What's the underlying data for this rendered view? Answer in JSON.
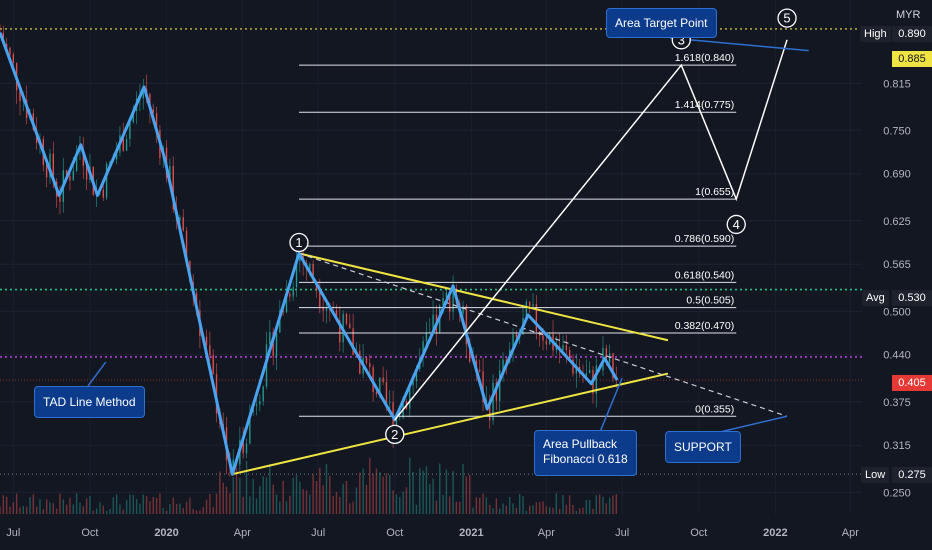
{
  "currency": "MYR",
  "colors": {
    "background": "#131722",
    "wave": "#4aa3f0",
    "trendline": "#f0e442",
    "projection": "#ffffff",
    "high_line": "#f0e442",
    "avg_line": "#26c281",
    "purple_line": "#b23fd9",
    "last_price": "#e53935",
    "callout_bg": "#0d3b8c"
  },
  "price_tags": {
    "high_label": "High",
    "high_value": "0.890",
    "dotted_value": "0.885",
    "avg_label": "Avg",
    "avg_value": "0.530",
    "last_value": "0.405",
    "low_label": "Low",
    "low_value": "0.275"
  },
  "callouts": {
    "target": "Area Target Point",
    "tad": "TAD Line Method",
    "pullback_line1": "Area Pullback",
    "pullback_line2": "Fibonacci 0.618",
    "support": "SUPPORT"
  },
  "chart_data": {
    "type": "line",
    "title": "",
    "y_ticks": [
      "0.815",
      "0.750",
      "0.690",
      "0.625",
      "0.565",
      "0.500",
      "0.440",
      "0.375",
      "0.315",
      "0.250"
    ],
    "x_ticks": [
      "Jul",
      "Oct",
      "2020",
      "Apr",
      "Jul",
      "Oct",
      "2021",
      "Apr",
      "Jul",
      "Oct",
      "2022",
      "Apr"
    ],
    "x_range": [
      "2019-06-15",
      "2022-04-15"
    ],
    "y_range": [
      0.22,
      0.93
    ],
    "wave_path": [
      [
        "2019-06-15",
        0.885
      ],
      [
        "2019-08-25",
        0.66
      ],
      [
        "2019-09-20",
        0.73
      ],
      [
        "2019-10-10",
        0.66
      ],
      [
        "2019-12-05",
        0.81
      ],
      [
        "2019-12-30",
        0.71
      ],
      [
        "2020-03-20",
        0.275
      ],
      [
        "2020-06-08",
        0.58
      ],
      [
        "2020-10-01",
        0.35
      ],
      [
        "2020-12-10",
        0.535
      ],
      [
        "2021-01-20",
        0.365
      ],
      [
        "2021-03-10",
        0.495
      ],
      [
        "2021-05-25",
        0.4
      ],
      [
        "2021-06-10",
        0.435
      ],
      [
        "2021-06-25",
        0.405
      ]
    ],
    "fib_levels": [
      {
        "label": "1.618(0.840)",
        "value": 0.84
      },
      {
        "label": "1.414(0.775)",
        "value": 0.775
      },
      {
        "label": "1(0.655)",
        "value": 0.655
      },
      {
        "label": "0.786(0.590)",
        "value": 0.59
      },
      {
        "label": "0.618(0.540)",
        "value": 0.54
      },
      {
        "label": "0.5(0.505)",
        "value": 0.505
      },
      {
        "label": "0.382(0.470)",
        "value": 0.47
      },
      {
        "label": "0(0.355)",
        "value": 0.355
      }
    ],
    "fib_x_range": [
      "2020-06-08",
      "2021-11-15"
    ],
    "projection_path": [
      [
        "2020-10-01",
        0.35
      ],
      [
        "2021-09-10",
        0.84
      ],
      [
        "2021-11-15",
        0.655
      ],
      [
        "2022-01-15",
        0.875
      ]
    ],
    "wave_labels": [
      {
        "text": "1",
        "x": "2020-06-08",
        "y": 0.595
      },
      {
        "text": "2",
        "x": "2020-10-01",
        "y": 0.33
      },
      {
        "text": "3",
        "x": "2021-09-10",
        "y": 0.875
      },
      {
        "text": "4",
        "x": "2021-11-15",
        "y": 0.62
      },
      {
        "text": "5",
        "x": "2022-01-15",
        "y": 0.905
      }
    ],
    "trendlines": [
      {
        "from": [
          "2020-03-20",
          0.275
        ],
        "to": [
          "2021-08-25",
          0.414
        ]
      },
      {
        "from": [
          "2020-06-08",
          0.58
        ],
        "to": [
          "2021-08-25",
          0.46
        ]
      }
    ],
    "dashed_line": {
      "from": [
        "2020-06-08",
        0.58
      ],
      "to": [
        "2022-01-15",
        0.355
      ]
    },
    "pullback_arrow_to": [
      "2021-07-01",
      0.408
    ],
    "support_arrow_to": [
      "2022-01-15",
      0.355
    ],
    "target_arrow_to": [
      "2022-02-10",
      0.86
    ],
    "tad_arrow_to": [
      "2019-10-20",
      0.43
    ],
    "hlines": {
      "high": 0.89,
      "dotted": 0.885,
      "avg": 0.53,
      "purple": 0.437,
      "last": 0.405,
      "low": 0.275
    }
  }
}
